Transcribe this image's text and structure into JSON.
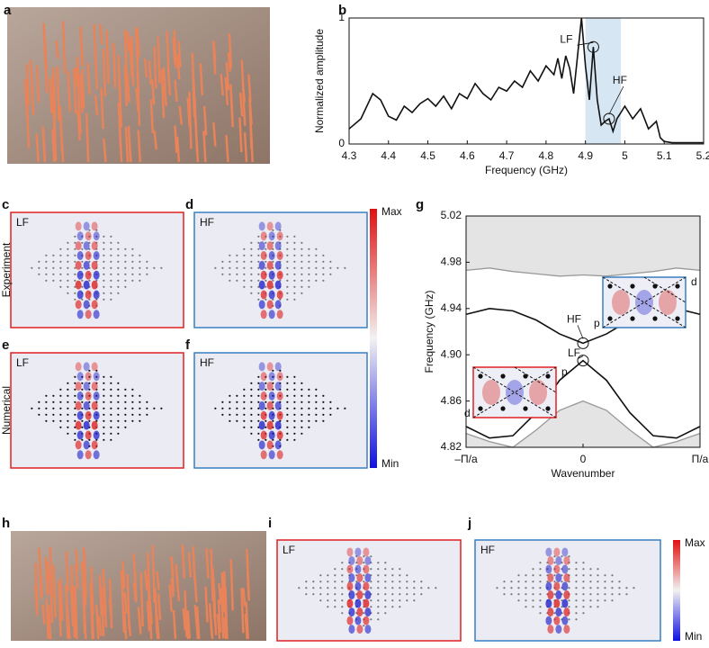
{
  "panel_letters": [
    "a",
    "b",
    "c",
    "d",
    "e",
    "f",
    "g",
    "h",
    "i",
    "j"
  ],
  "row_labels": [
    "Experiment",
    "Numerical"
  ],
  "maps": [
    {
      "label": "LF",
      "color": "#e02020"
    },
    {
      "label": "HF",
      "color": "#3a7fc1"
    },
    {
      "label": "LF",
      "color": "#e02020"
    },
    {
      "label": "HF",
      "color": "#3a7fc1"
    },
    {
      "label": "LF",
      "color": "#e02020"
    },
    {
      "label": "HF",
      "color": "#3a7fc1"
    }
  ],
  "colorbars": [
    {
      "top": "Max",
      "bottom": "Min"
    },
    {
      "top": "Max",
      "bottom": "Min"
    }
  ],
  "chart_data": [
    {
      "type": "line",
      "xlabel": "Frequency (GHz)",
      "ylabel": "Normalized amplitude",
      "xlim": [
        4.3,
        5.2
      ],
      "xticks": [
        4.3,
        4.4,
        4.5,
        4.6,
        4.7,
        4.8,
        4.9,
        5,
        5.1,
        5.2
      ],
      "ylim": [
        0,
        1
      ],
      "yticks": [
        0,
        1
      ],
      "highlight_x": [
        4.9,
        4.99
      ],
      "highlight_color": "#d6e6f2",
      "x": [
        4.3,
        4.33,
        4.36,
        4.38,
        4.4,
        4.42,
        4.44,
        4.46,
        4.48,
        4.5,
        4.52,
        4.54,
        4.56,
        4.58,
        4.6,
        4.62,
        4.64,
        4.66,
        4.68,
        4.7,
        4.72,
        4.74,
        4.76,
        4.78,
        4.8,
        4.82,
        4.83,
        4.84,
        4.85,
        4.86,
        4.87,
        4.88,
        4.89,
        4.9,
        4.91,
        4.92,
        4.93,
        4.94,
        4.95,
        4.96,
        4.97,
        4.98,
        4.99,
        5,
        5.02,
        5.04,
        5.06,
        5.08,
        5.09,
        5.1,
        5.12,
        5.2
      ],
      "series": [
        {
          "color": "#111111",
          "values": [
            0.12,
            0.2,
            0.4,
            0.35,
            0.22,
            0.19,
            0.3,
            0.25,
            0.32,
            0.36,
            0.3,
            0.38,
            0.28,
            0.4,
            0.36,
            0.48,
            0.4,
            0.35,
            0.45,
            0.42,
            0.5,
            0.45,
            0.58,
            0.5,
            0.62,
            0.55,
            0.68,
            0.52,
            0.7,
            0.6,
            0.4,
            0.7,
            1,
            0.62,
            0.35,
            0.77,
            0.35,
            0.15,
            0.18,
            0.2,
            0.1,
            0.2,
            0.25,
            0.3,
            0.2,
            0.28,
            0.12,
            0.18,
            0.05,
            0.02,
            0.01,
            0.01
          ]
        }
      ],
      "annotations": [
        {
          "text": "LF",
          "x": 4.92,
          "y": 0.77,
          "color": "#e02020"
        },
        {
          "text": "HF",
          "x": 4.96,
          "y": 0.2,
          "color": "#3a7fc1"
        }
      ]
    },
    {
      "type": "line",
      "xlabel": "Wavenumber",
      "ylabel": "Frequency (GHz)",
      "xlim": [
        -1,
        1
      ],
      "xticks": [
        {
          "value": -1,
          "label": "–Π/a"
        },
        0,
        {
          "value": 1,
          "label": "Π/a"
        }
      ],
      "ylim": [
        4.82,
        5.02
      ],
      "yticks": [
        4.82,
        4.86,
        {
          "value": 4.9,
          "label": "4.90"
        },
        4.94,
        4.98,
        5.02
      ],
      "shade_color": "#e4e4e4",
      "x": [
        -1,
        -0.8,
        -0.6,
        -0.4,
        -0.2,
        0,
        0.2,
        0.4,
        0.6,
        0.8,
        1
      ],
      "series": [
        {
          "color": "#999999",
          "fill": "above",
          "values": [
            4.973,
            4.975,
            4.972,
            4.97,
            4.968,
            4.969,
            4.968,
            4.97,
            4.972,
            4.975,
            4.973
          ]
        },
        {
          "color": "#111111",
          "values": [
            4.935,
            4.94,
            4.938,
            4.93,
            4.918,
            4.91,
            4.918,
            4.93,
            4.938,
            4.94,
            4.935
          ]
        },
        {
          "color": "#111111",
          "values": [
            4.838,
            4.828,
            4.83,
            4.85,
            4.878,
            4.895,
            4.878,
            4.85,
            4.83,
            4.828,
            4.838
          ]
        },
        {
          "color": "#999999",
          "fill": "below",
          "values": [
            4.832,
            4.825,
            4.82,
            4.835,
            4.852,
            4.86,
            4.852,
            4.835,
            4.82,
            4.825,
            4.832
          ]
        }
      ],
      "annotations": [
        {
          "text": "HF",
          "x": 0,
          "y": 4.91,
          "color": "#3a7fc1"
        },
        {
          "text": "LF",
          "x": 0,
          "y": 4.895,
          "color": "#e02020"
        }
      ],
      "insets": [
        {
          "color": "#3a7fc1",
          "top_label": "d",
          "side_label": "p"
        },
        {
          "color": "#e02020",
          "top_label": "p",
          "side_label": "d"
        }
      ]
    }
  ]
}
